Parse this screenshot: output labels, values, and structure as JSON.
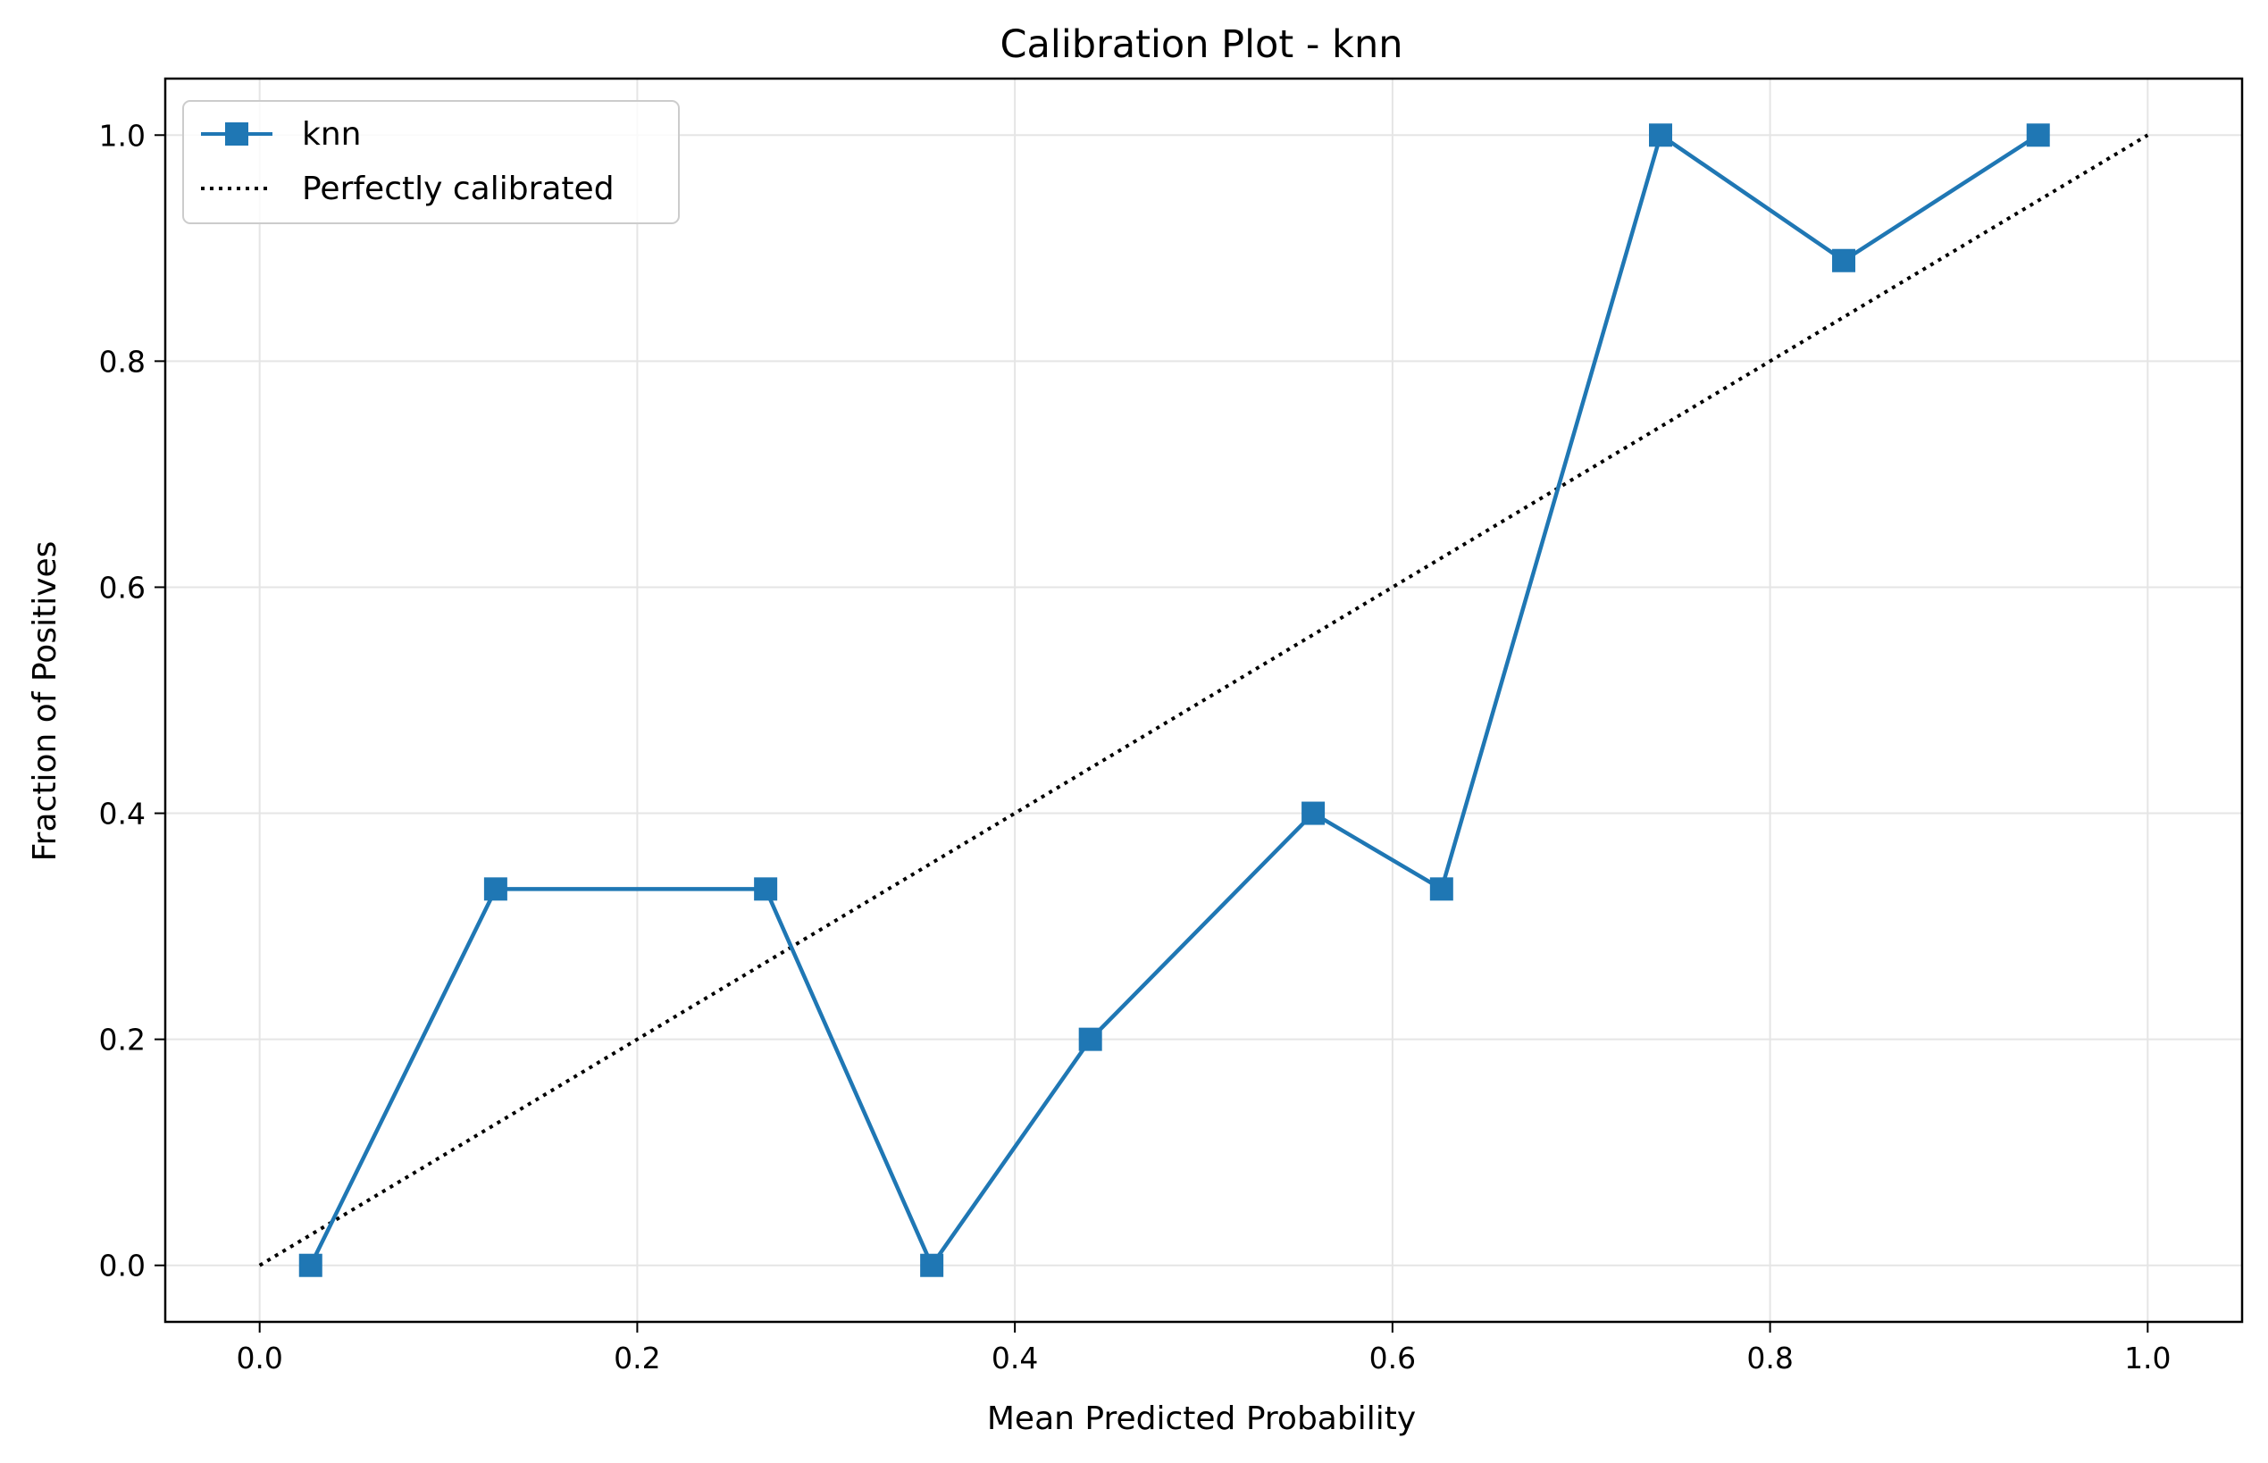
{
  "chart_data": {
    "type": "line",
    "title": "Calibration Plot - knn",
    "xlabel": "Mean Predicted Probability",
    "ylabel": "Fraction of Positives",
    "xlim": [
      -0.05,
      1.05
    ],
    "ylim": [
      -0.05,
      1.05
    ],
    "xticks": [
      0.0,
      0.2,
      0.4,
      0.6,
      0.8,
      1.0
    ],
    "yticks": [
      0.0,
      0.2,
      0.4,
      0.6,
      0.8,
      1.0
    ],
    "xtick_labels": [
      "0.0",
      "0.2",
      "0.4",
      "0.6",
      "0.8",
      "1.0"
    ],
    "ytick_labels": [
      "0.0",
      "0.2",
      "0.4",
      "0.6",
      "0.8",
      "1.0"
    ],
    "grid": true,
    "legend_position": "top-left",
    "series": [
      {
        "name": "knn",
        "style": "solid line with square markers",
        "color": "#1f77b4",
        "x": [
          0.027,
          0.125,
          0.268,
          0.356,
          0.44,
          0.558,
          0.626,
          0.742,
          0.839,
          0.942
        ],
        "y": [
          0.0,
          0.333,
          0.333,
          0.0,
          0.2,
          0.4,
          0.333,
          1.0,
          0.889,
          1.0
        ]
      },
      {
        "name": "Perfectly calibrated",
        "style": "dotted line",
        "color": "#000000",
        "x": [
          0.0,
          1.0
        ],
        "y": [
          0.0,
          1.0
        ]
      }
    ]
  }
}
